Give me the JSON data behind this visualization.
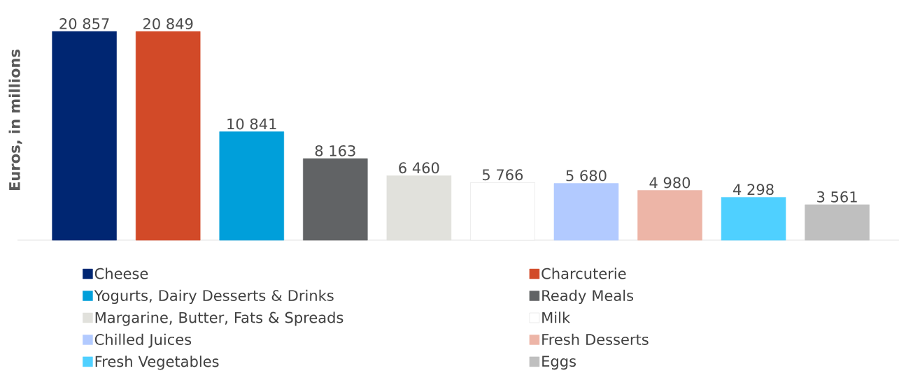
{
  "chart_data": {
    "type": "bar",
    "stacked": true,
    "ylabel": "Euros, in millions",
    "legend": "bottom",
    "categories": [
      null,
      null,
      null,
      null,
      null,
      null,
      null,
      null,
      null,
      null
    ],
    "series": [
      {
        "name": "Cheese",
        "color": "#002672",
        "values": [
          20857,
          null,
          null,
          null,
          null,
          null,
          null,
          null,
          null,
          null
        ],
        "value_labels": [
          "20 857",
          null,
          null,
          null,
          null,
          null,
          null,
          null,
          null,
          null
        ]
      },
      {
        "name": "Charcuterie",
        "color": "#d24a28",
        "values": [
          null,
          20849,
          null,
          null,
          null,
          null,
          null,
          null,
          null,
          null
        ],
        "value_labels": [
          null,
          "20 849",
          null,
          null,
          null,
          null,
          null,
          null,
          null,
          null
        ]
      },
      {
        "name": "Yogurts, Dairy Desserts & Drinks",
        "color": "#009fda",
        "values": [
          null,
          null,
          10841,
          null,
          null,
          null,
          null,
          null,
          null,
          null
        ],
        "value_labels": [
          null,
          null,
          "10 841",
          null,
          null,
          null,
          null,
          null,
          null,
          null
        ]
      },
      {
        "name": "Ready Meals",
        "color": "#616365",
        "values": [
          null,
          null,
          null,
          8163,
          null,
          null,
          null,
          null,
          null,
          null
        ],
        "value_labels": [
          null,
          null,
          null,
          "8 163",
          null,
          null,
          null,
          null,
          null,
          null
        ]
      },
      {
        "name": "Margarine, Butter, Fats & Spreads",
        "color": "#e1e1dc",
        "values": [
          null,
          null,
          null,
          null,
          6460,
          null,
          null,
          null,
          null,
          null
        ],
        "value_labels": [
          null,
          null,
          null,
          null,
          "6 460",
          null,
          null,
          null,
          null,
          null
        ]
      },
      {
        "name": "Milk",
        "color": "#ffffff",
        "values": [
          null,
          null,
          null,
          null,
          null,
          5766,
          null,
          null,
          null,
          null
        ],
        "value_labels": [
          null,
          null,
          null,
          null,
          null,
          "5 766",
          null,
          null,
          null,
          null
        ]
      },
      {
        "name": "Chilled Juices",
        "color": "#b2caff",
        "values": [
          null,
          null,
          null,
          null,
          null,
          null,
          5680,
          null,
          null,
          null
        ],
        "value_labels": [
          null,
          null,
          null,
          null,
          null,
          null,
          "5 680",
          null,
          null,
          null
        ]
      },
      {
        "name": "Fresh Desserts",
        "color": "#edb5a7",
        "values": [
          null,
          null,
          null,
          null,
          null,
          null,
          null,
          4980,
          null,
          null
        ],
        "value_labels": [
          null,
          null,
          null,
          null,
          null,
          null,
          null,
          "4 980",
          null,
          null
        ]
      },
      {
        "name": "Fresh Vegetables",
        "color": "#4fd0ff",
        "values": [
          null,
          null,
          null,
          null,
          null,
          null,
          null,
          null,
          4298,
          null
        ],
        "value_labels": [
          null,
          null,
          null,
          null,
          null,
          null,
          null,
          null,
          "4 298",
          null
        ]
      },
      {
        "name": "Eggs",
        "color": "#bfbfbf",
        "values": [
          null,
          null,
          null,
          null,
          null,
          null,
          null,
          null,
          null,
          3561
        ],
        "value_labels": [
          null,
          null,
          null,
          null,
          null,
          null,
          null,
          null,
          null,
          "3 561"
        ]
      }
    ]
  }
}
